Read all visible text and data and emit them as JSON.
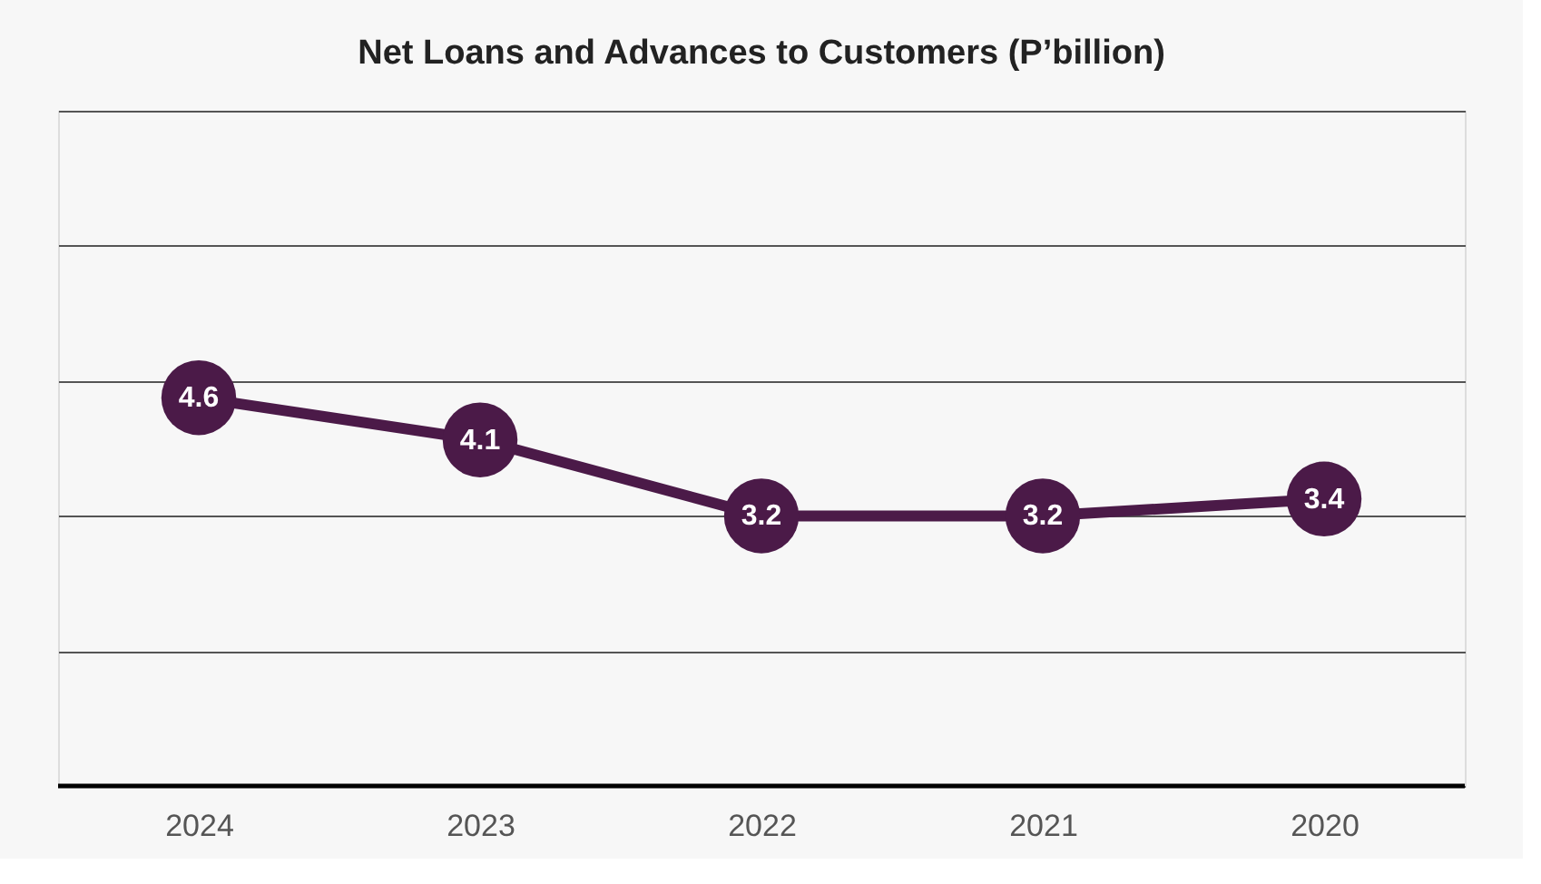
{
  "chart_data": {
    "type": "line",
    "title": "Net Loans and Advances to Customers (P’billion)",
    "categories": [
      "2024",
      "2023",
      "2022",
      "2021",
      "2020"
    ],
    "series": [
      {
        "color": "#4b1a48",
        "values": [
          4.6,
          4.1,
          3.2,
          3.2,
          3.4
        ]
      }
    ],
    "ylim": [
      0,
      8
    ],
    "tick_labels": "x",
    "grid": "y",
    "marker": "circle",
    "line_style": "solid",
    "data_labels": true,
    "legend": false
  }
}
